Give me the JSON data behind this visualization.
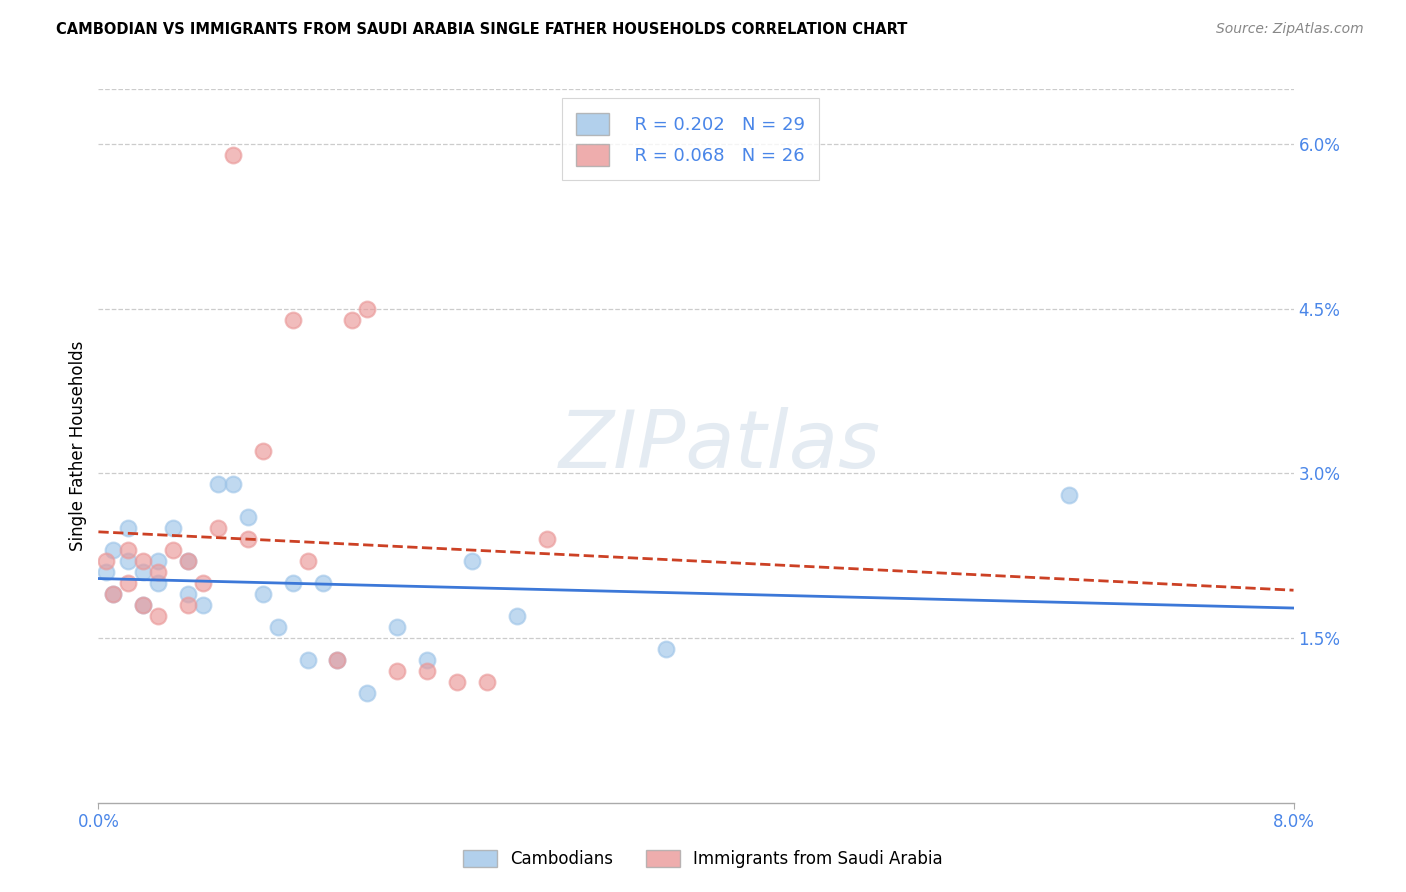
{
  "title": "CAMBODIAN VS IMMIGRANTS FROM SAUDI ARABIA SINGLE FATHER HOUSEHOLDS CORRELATION CHART",
  "source": "Source: ZipAtlas.com",
  "ylabel": "Single Father Households",
  "xlim": [
    0.0,
    0.08
  ],
  "ylim": [
    0.0,
    0.065
  ],
  "legend_r1": "R = 0.202",
  "legend_n1": "N = 29",
  "legend_r2": "R = 0.068",
  "legend_n2": "N = 26",
  "cambodians_color": "#9fc5e8",
  "saudi_color": "#ea9999",
  "trendline_cambodians_color": "#3c78d8",
  "trendline_saudi_color": "#cc4125",
  "tick_color": "#4a86e8",
  "watermark_text": "ZIPatlas",
  "legend_label1": "Cambodians",
  "legend_label2": "Immigrants from Saudi Arabia",
  "cambodians_x": [
    0.0005,
    0.001,
    0.001,
    0.002,
    0.002,
    0.003,
    0.003,
    0.004,
    0.004,
    0.005,
    0.006,
    0.006,
    0.007,
    0.008,
    0.009,
    0.01,
    0.011,
    0.012,
    0.013,
    0.014,
    0.015,
    0.016,
    0.018,
    0.02,
    0.022,
    0.025,
    0.028,
    0.038,
    0.065
  ],
  "cambodians_y": [
    0.021,
    0.023,
    0.019,
    0.025,
    0.022,
    0.021,
    0.018,
    0.022,
    0.02,
    0.025,
    0.019,
    0.022,
    0.018,
    0.029,
    0.029,
    0.026,
    0.019,
    0.016,
    0.02,
    0.013,
    0.02,
    0.013,
    0.01,
    0.016,
    0.013,
    0.022,
    0.017,
    0.014,
    0.028
  ],
  "saudi_x": [
    0.0005,
    0.001,
    0.002,
    0.002,
    0.003,
    0.003,
    0.004,
    0.004,
    0.005,
    0.006,
    0.006,
    0.007,
    0.008,
    0.009,
    0.01,
    0.011,
    0.013,
    0.014,
    0.016,
    0.017,
    0.018,
    0.02,
    0.022,
    0.024,
    0.026,
    0.03
  ],
  "saudi_y": [
    0.022,
    0.019,
    0.023,
    0.02,
    0.022,
    0.018,
    0.021,
    0.017,
    0.023,
    0.022,
    0.018,
    0.02,
    0.025,
    0.059,
    0.024,
    0.032,
    0.044,
    0.022,
    0.013,
    0.044,
    0.045,
    0.012,
    0.012,
    0.011,
    0.011,
    0.024
  ],
  "ytick_vals": [
    0.015,
    0.03,
    0.045,
    0.06
  ],
  "ytick_labels": [
    "1.5%",
    "3.0%",
    "4.5%",
    "6.0%"
  ],
  "xtick_vals": [
    0.0,
    0.08
  ],
  "xtick_labels": [
    "0.0%",
    "8.0%"
  ]
}
